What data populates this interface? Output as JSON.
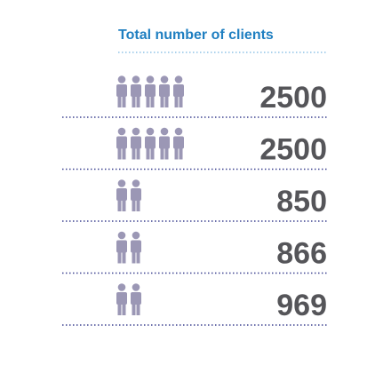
{
  "chart_data": {
    "type": "pictogram",
    "title": "Total number of clients",
    "values": [
      2500,
      2500,
      850,
      866,
      969
    ],
    "color": "#9b97b5"
  }
}
